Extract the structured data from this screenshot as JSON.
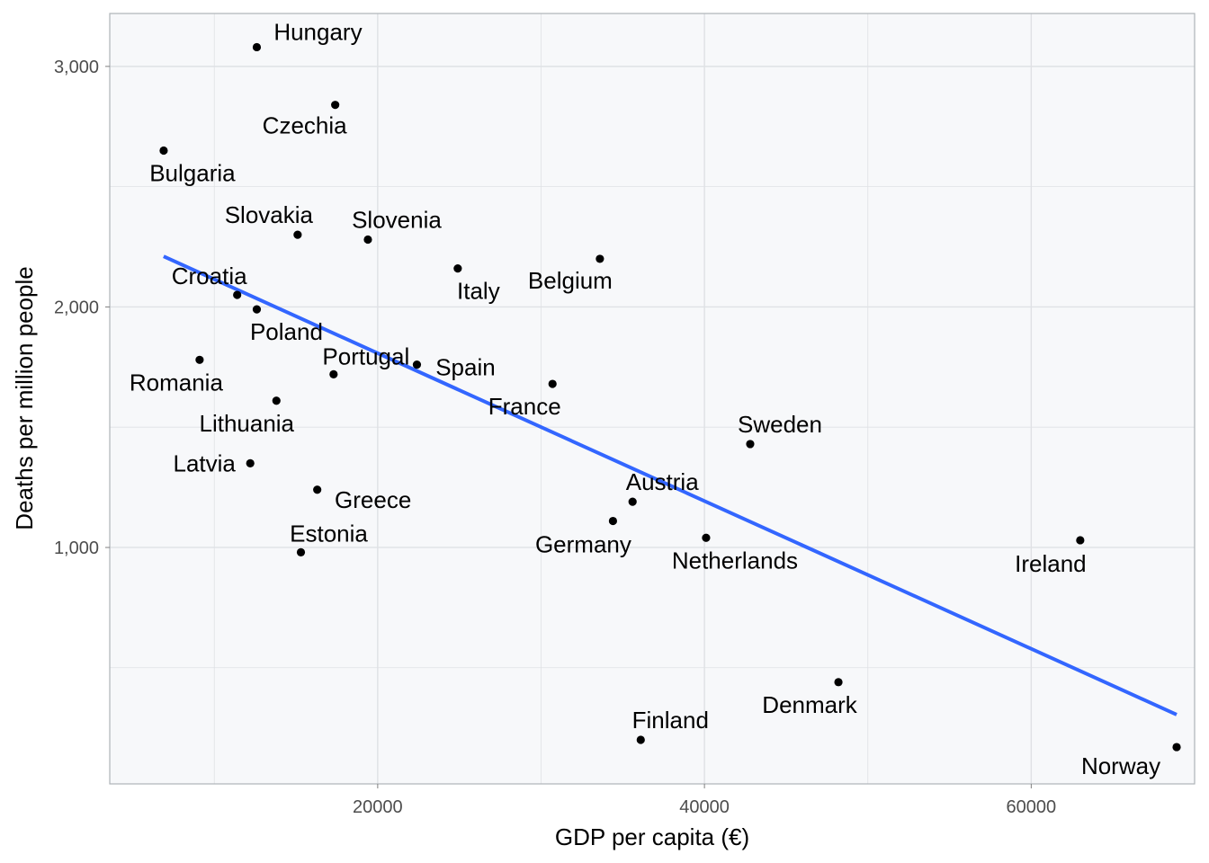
{
  "chart_data": {
    "type": "scatter",
    "title": "",
    "xlabel": "GDP per capita (€)",
    "ylabel": "Deaths per million people",
    "xlim": [
      3600,
      70000
    ],
    "ylim": [
      17,
      3220
    ],
    "x_ticks": [
      20000,
      40000,
      60000
    ],
    "x_tick_labels": [
      "20000",
      "40000",
      "60000"
    ],
    "x_minor_ticks": [
      10000,
      30000,
      50000,
      70000
    ],
    "y_ticks": [
      1000,
      2000,
      3000
    ],
    "y_tick_labels": [
      "1,000",
      "2,000",
      "3,000"
    ],
    "y_minor_ticks": [
      500,
      1500,
      2500
    ],
    "grid": true,
    "legend": "none",
    "colors": {
      "points": "#000000",
      "trend": "#3366ff",
      "background": "#f7f8fa",
      "grid": "#dfe1e5",
      "border": "#aeb3b8"
    },
    "points": [
      {
        "label": "Hungary",
        "x": 12600,
        "y": 3080
      },
      {
        "label": "Czechia",
        "x": 17400,
        "y": 2840
      },
      {
        "label": "Bulgaria",
        "x": 6900,
        "y": 2650
      },
      {
        "label": "Slovakia",
        "x": 15100,
        "y": 2300
      },
      {
        "label": "Slovenia",
        "x": 19400,
        "y": 2280
      },
      {
        "label": "Italy",
        "x": 24900,
        "y": 2160
      },
      {
        "label": "Belgium",
        "x": 33600,
        "y": 2200
      },
      {
        "label": "Croatia",
        "x": 11400,
        "y": 2050
      },
      {
        "label": "Poland",
        "x": 12600,
        "y": 1990
      },
      {
        "label": "Romania",
        "x": 9100,
        "y": 1780
      },
      {
        "label": "Portugal",
        "x": 17300,
        "y": 1720
      },
      {
        "label": "Spain",
        "x": 22400,
        "y": 1760
      },
      {
        "label": "France",
        "x": 30700,
        "y": 1680
      },
      {
        "label": "Lithuania",
        "x": 13800,
        "y": 1610
      },
      {
        "label": "Latvia",
        "x": 12200,
        "y": 1350
      },
      {
        "label": "Sweden",
        "x": 42800,
        "y": 1430
      },
      {
        "label": "Greece",
        "x": 16300,
        "y": 1240
      },
      {
        "label": "Austria",
        "x": 35600,
        "y": 1190
      },
      {
        "label": "Germany",
        "x": 34400,
        "y": 1110
      },
      {
        "label": "Estonia",
        "x": 15300,
        "y": 980
      },
      {
        "label": "Netherlands",
        "x": 40100,
        "y": 1040
      },
      {
        "label": "Ireland",
        "x": 63000,
        "y": 1030
      },
      {
        "label": "Denmark",
        "x": 48200,
        "y": 440
      },
      {
        "label": "Finland",
        "x": 36100,
        "y": 200
      },
      {
        "label": "Norway",
        "x": 68900,
        "y": 170
      }
    ],
    "trend_line": {
      "x": [
        6900,
        68900
      ],
      "y": [
        2210,
        305
      ]
    }
  }
}
